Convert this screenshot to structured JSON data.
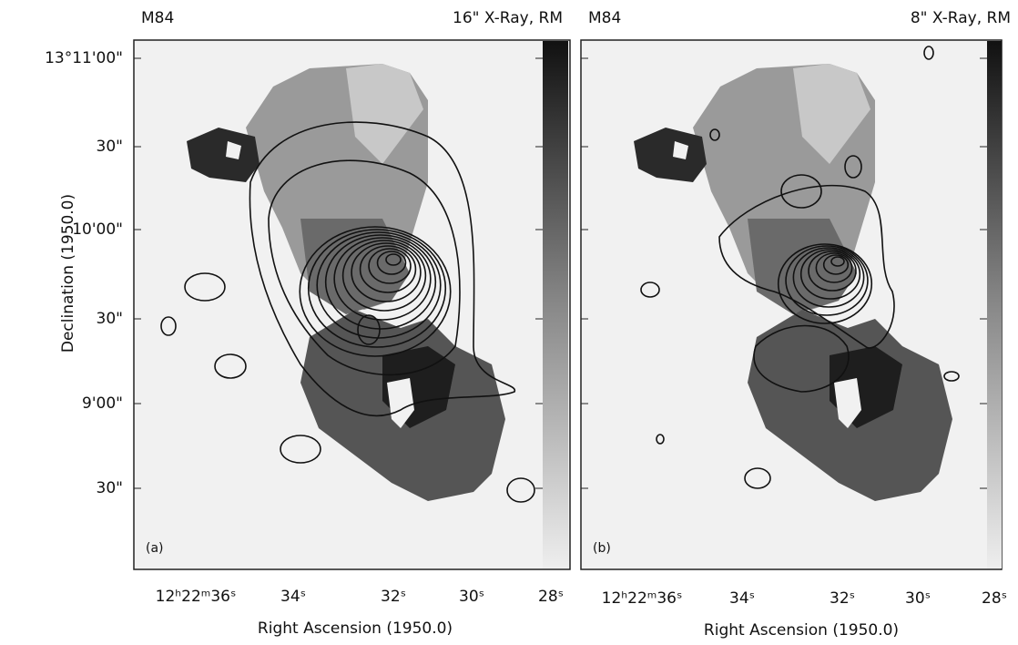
{
  "y_axis_label": "Declination (1950.0)",
  "y_tick_labels": [
    "13°11'00\"",
    "30\"",
    "10'00\"",
    "30\"",
    "9'00\"",
    "30\""
  ],
  "panels": [
    {
      "title": "M84",
      "subtitle": "16\" X-Ray, RM",
      "label": "(a)",
      "x_tick_labels": [
        "12ʰ22ᵐ36ˢ",
        "34ˢ",
        "32ˢ",
        "30ˢ",
        "28ˢ"
      ],
      "x_axis_label": "Right Ascension (1950.0)"
    },
    {
      "title": "M84",
      "subtitle": "8\" X-Ray, RM",
      "label": "(b)",
      "x_tick_labels": [
        "12ʰ22ᵐ36ˢ",
        "34ˢ",
        "32ˢ",
        "30ˢ",
        "28ˢ"
      ],
      "x_axis_label": "Right Ascension (1950.0)"
    }
  ]
}
